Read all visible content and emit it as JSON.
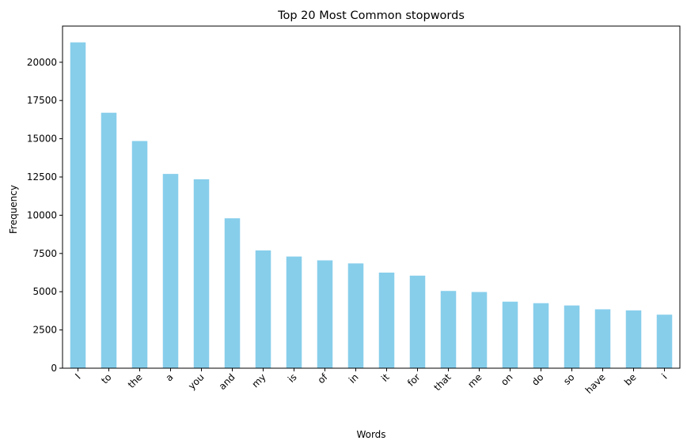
{
  "chart_data": {
    "type": "bar",
    "title": "Top 20 Most Common stopwords",
    "xlabel": "Words",
    "ylabel": "Frequency",
    "categories": [
      "I",
      "to",
      "the",
      "a",
      "you",
      "and",
      "my",
      "is",
      "of",
      "in",
      "it",
      "for",
      "that",
      "me",
      "on",
      "do",
      "so",
      "have",
      "be",
      "i"
    ],
    "values": [
      21300,
      16700,
      14850,
      12700,
      12350,
      9800,
      7700,
      7300,
      7050,
      6850,
      6250,
      6050,
      5050,
      4980,
      4350,
      4250,
      4100,
      3850,
      3780,
      3500
    ],
    "ylim": [
      0,
      22365
    ],
    "yticks": [
      0,
      2500,
      5000,
      7500,
      10000,
      12500,
      15000,
      17500,
      20000
    ],
    "bar_color": "#87CEEB",
    "grid": false,
    "xtick_rotation": 45
  }
}
